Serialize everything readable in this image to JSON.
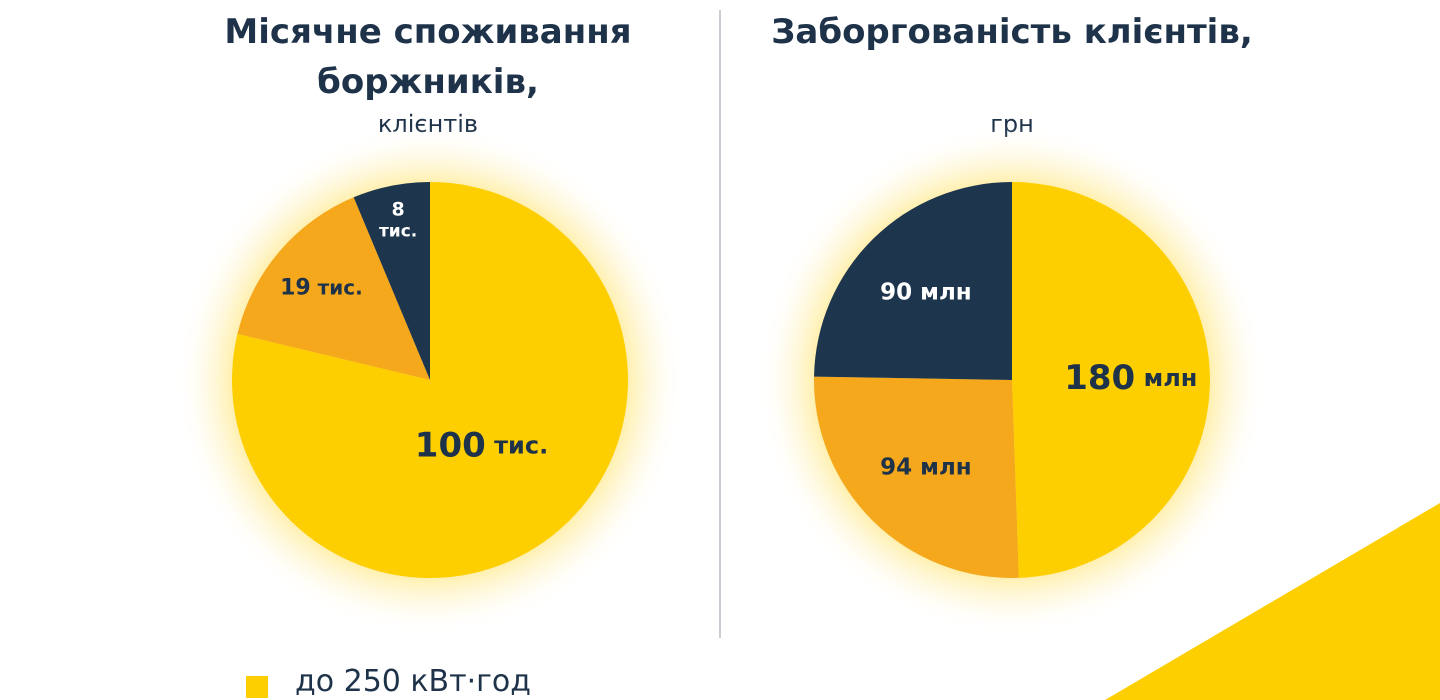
{
  "colors": {
    "yellow": "#fecf00",
    "orange": "#f5a81c",
    "navy": "#1e364d",
    "text_dark": "#1e3349",
    "text_light": "#ffffff"
  },
  "chart_data": [
    {
      "type": "pie",
      "title": "Місячне споживання боржників,",
      "subtitle": "клієнтів",
      "start": "top, clockwise",
      "slices": [
        {
          "value": 100,
          "label": "100 тис.",
          "label_num": "100",
          "label_unit": "тис.",
          "color": "#fecf00"
        },
        {
          "value": 19,
          "label": "19 тис.",
          "label_num": "19",
          "label_unit": "тис.",
          "color": "#f5a81c"
        },
        {
          "value": 8,
          "label": "8 тис.",
          "label_num": "8",
          "label_unit": "тис.",
          "color": "#1e364d"
        }
      ]
    },
    {
      "type": "pie",
      "title": "Заборгованість клієнтів,",
      "subtitle": "грн",
      "start": "top, clockwise",
      "slices": [
        {
          "value": 180,
          "label": "180 млн",
          "label_num": "180",
          "label_unit": "млн",
          "color": "#fecf00"
        },
        {
          "value": 94,
          "label": "94 млн",
          "label_num": "94",
          "label_unit": "млн",
          "color": "#f5a81c"
        },
        {
          "value": 90,
          "label": "90 млн",
          "label_num": "90",
          "label_unit": "млн",
          "color": "#1e364d"
        }
      ]
    }
  ],
  "legend": [
    {
      "label": "до 250 кВт·год",
      "color": "#fecf00"
    }
  ]
}
